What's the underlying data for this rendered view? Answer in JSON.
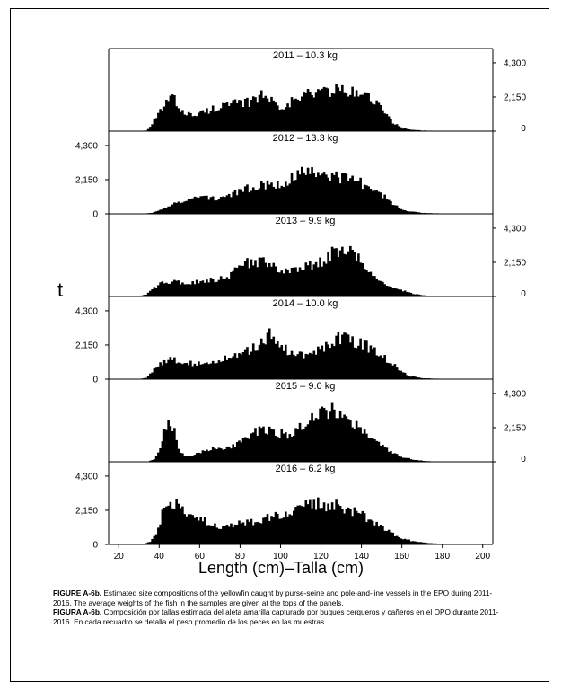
{
  "chart_data": {
    "type": "histogram-panels",
    "y_label": "t",
    "x_label": "Length (cm)–Talla (cm)",
    "x_range": [
      15,
      205
    ],
    "x_ticks": [
      20,
      40,
      60,
      80,
      100,
      120,
      140,
      160,
      180,
      200
    ],
    "y_range": [
      0,
      5200
    ],
    "y_ticks": [
      0,
      2150,
      4300
    ],
    "y_tick_labels": [
      "0",
      "2,150",
      "4,300"
    ],
    "panels": [
      {
        "title": "2011  –  10.3  kg",
        "year": "2011",
        "avg_weight": "10.3 kg",
        "axis_side": "right",
        "knots": [
          [
            30,
            0
          ],
          [
            34,
            50
          ],
          [
            36,
            300
          ],
          [
            38,
            800
          ],
          [
            40,
            1100
          ],
          [
            43,
            1700
          ],
          [
            45,
            2100
          ],
          [
            47,
            2050
          ],
          [
            49,
            1600
          ],
          [
            52,
            1250
          ],
          [
            55,
            1050
          ],
          [
            58,
            1000
          ],
          [
            61,
            1150
          ],
          [
            64,
            1300
          ],
          [
            68,
            1500
          ],
          [
            72,
            1600
          ],
          [
            76,
            1700
          ],
          [
            80,
            1700
          ],
          [
            84,
            1800
          ],
          [
            88,
            2150
          ],
          [
            92,
            2250
          ],
          [
            96,
            1900
          ],
          [
            100,
            1600
          ],
          [
            104,
            1750
          ],
          [
            108,
            2000
          ],
          [
            112,
            2300
          ],
          [
            116,
            2400
          ],
          [
            120,
            2500
          ],
          [
            124,
            2600
          ],
          [
            128,
            2550
          ],
          [
            132,
            2500
          ],
          [
            136,
            2400
          ],
          [
            140,
            2300
          ],
          [
            144,
            2200
          ],
          [
            148,
            1700
          ],
          [
            152,
            1050
          ],
          [
            156,
            500
          ],
          [
            160,
            200
          ],
          [
            164,
            100
          ],
          [
            170,
            40
          ],
          [
            180,
            15
          ],
          [
            195,
            0
          ]
        ]
      },
      {
        "title": "2012  –  13.3  kg",
        "year": "2012",
        "avg_weight": "13.3 kg",
        "axis_side": "left",
        "knots": [
          [
            30,
            0
          ],
          [
            36,
            50
          ],
          [
            40,
            200
          ],
          [
            44,
            400
          ],
          [
            48,
            650
          ],
          [
            52,
            850
          ],
          [
            56,
            950
          ],
          [
            60,
            1050
          ],
          [
            64,
            1050
          ],
          [
            68,
            1000
          ],
          [
            72,
            1050
          ],
          [
            76,
            1200
          ],
          [
            80,
            1400
          ],
          [
            84,
            1600
          ],
          [
            88,
            1750
          ],
          [
            92,
            1850
          ],
          [
            96,
            1900
          ],
          [
            100,
            1950
          ],
          [
            104,
            2150
          ],
          [
            108,
            2400
          ],
          [
            112,
            2600
          ],
          [
            116,
            2750
          ],
          [
            120,
            2700
          ],
          [
            124,
            2500
          ],
          [
            128,
            2350
          ],
          [
            132,
            2250
          ],
          [
            136,
            2100
          ],
          [
            140,
            1950
          ],
          [
            144,
            1700
          ],
          [
            148,
            1400
          ],
          [
            152,
            1000
          ],
          [
            156,
            600
          ],
          [
            160,
            300
          ],
          [
            164,
            150
          ],
          [
            170,
            60
          ],
          [
            180,
            20
          ],
          [
            195,
            0
          ]
        ]
      },
      {
        "title": "2013  –  9.9  kg",
        "year": "2013",
        "avg_weight": "9.9 kg",
        "axis_side": "right",
        "knots": [
          [
            30,
            0
          ],
          [
            34,
            150
          ],
          [
            38,
            600
          ],
          [
            42,
            900
          ],
          [
            46,
            950
          ],
          [
            50,
            850
          ],
          [
            54,
            800
          ],
          [
            58,
            900
          ],
          [
            62,
            1000
          ],
          [
            66,
            1050
          ],
          [
            70,
            1100
          ],
          [
            74,
            1250
          ],
          [
            78,
            1600
          ],
          [
            82,
            2000
          ],
          [
            86,
            2200
          ],
          [
            90,
            2200
          ],
          [
            94,
            2000
          ],
          [
            98,
            1850
          ],
          [
            102,
            1700
          ],
          [
            106,
            1600
          ],
          [
            110,
            1700
          ],
          [
            114,
            1900
          ],
          [
            118,
            2100
          ],
          [
            122,
            2400
          ],
          [
            126,
            2700
          ],
          [
            130,
            2900
          ],
          [
            134,
            2800
          ],
          [
            138,
            2400
          ],
          [
            142,
            1900
          ],
          [
            146,
            1300
          ],
          [
            150,
            900
          ],
          [
            154,
            650
          ],
          [
            158,
            450
          ],
          [
            162,
            300
          ],
          [
            166,
            150
          ],
          [
            172,
            60
          ],
          [
            180,
            20
          ],
          [
            195,
            0
          ]
        ]
      },
      {
        "title": "2014  –  10.0  kg",
        "year": "2014",
        "avg_weight": "10.0 kg",
        "axis_side": "left",
        "knots": [
          [
            30,
            0
          ],
          [
            34,
            100
          ],
          [
            38,
            700
          ],
          [
            42,
            1100
          ],
          [
            46,
            1300
          ],
          [
            50,
            1100
          ],
          [
            54,
            1000
          ],
          [
            58,
            950
          ],
          [
            62,
            1000
          ],
          [
            66,
            1150
          ],
          [
            70,
            1200
          ],
          [
            74,
            1300
          ],
          [
            78,
            1400
          ],
          [
            82,
            1650
          ],
          [
            86,
            1900
          ],
          [
            90,
            2250
          ],
          [
            94,
            2800
          ],
          [
            96,
            2850
          ],
          [
            100,
            2300
          ],
          [
            104,
            1700
          ],
          [
            108,
            1450
          ],
          [
            112,
            1500
          ],
          [
            116,
            1650
          ],
          [
            120,
            1950
          ],
          [
            124,
            2250
          ],
          [
            128,
            2600
          ],
          [
            132,
            2700
          ],
          [
            136,
            2450
          ],
          [
            140,
            2250
          ],
          [
            144,
            2000
          ],
          [
            148,
            1700
          ],
          [
            152,
            1300
          ],
          [
            156,
            900
          ],
          [
            160,
            500
          ],
          [
            164,
            200
          ],
          [
            170,
            60
          ],
          [
            180,
            20
          ],
          [
            195,
            0
          ]
        ]
      },
      {
        "title": "2015  –  9.0  kg",
        "year": "2015",
        "avg_weight": "9.0 kg",
        "axis_side": "right",
        "knots": [
          [
            34,
            0
          ],
          [
            38,
            200
          ],
          [
            41,
            900
          ],
          [
            43,
            2200
          ],
          [
            45,
            2500
          ],
          [
            47,
            2200
          ],
          [
            49,
            900
          ],
          [
            52,
            400
          ],
          [
            56,
            350
          ],
          [
            60,
            550
          ],
          [
            64,
            750
          ],
          [
            68,
            900
          ],
          [
            72,
            900
          ],
          [
            76,
            1000
          ],
          [
            80,
            1150
          ],
          [
            84,
            1450
          ],
          [
            88,
            1900
          ],
          [
            92,
            2100
          ],
          [
            96,
            2000
          ],
          [
            100,
            1750
          ],
          [
            104,
            1700
          ],
          [
            108,
            2100
          ],
          [
            112,
            2500
          ],
          [
            116,
            2750
          ],
          [
            120,
            3100
          ],
          [
            124,
            3300
          ],
          [
            126,
            3400
          ],
          [
            130,
            3000
          ],
          [
            134,
            2600
          ],
          [
            138,
            2200
          ],
          [
            142,
            1800
          ],
          [
            146,
            1350
          ],
          [
            150,
            950
          ],
          [
            154,
            650
          ],
          [
            158,
            400
          ],
          [
            162,
            250
          ],
          [
            166,
            120
          ],
          [
            172,
            40
          ],
          [
            182,
            10
          ],
          [
            195,
            0
          ]
        ]
      },
      {
        "title": "2016  –  6.2  kg",
        "year": "2016",
        "avg_weight": "6.2 kg",
        "axis_side": "left",
        "knots": [
          [
            32,
            0
          ],
          [
            36,
            200
          ],
          [
            39,
            800
          ],
          [
            41,
            1700
          ],
          [
            43,
            2300
          ],
          [
            45,
            2500
          ],
          [
            47,
            2600
          ],
          [
            49,
            2400
          ],
          [
            52,
            2000
          ],
          [
            56,
            1700
          ],
          [
            60,
            1600
          ],
          [
            64,
            1400
          ],
          [
            68,
            1200
          ],
          [
            72,
            1050
          ],
          [
            76,
            1150
          ],
          [
            80,
            1300
          ],
          [
            84,
            1350
          ],
          [
            88,
            1450
          ],
          [
            92,
            1600
          ],
          [
            96,
            1800
          ],
          [
            100,
            1900
          ],
          [
            104,
            2050
          ],
          [
            108,
            2250
          ],
          [
            112,
            2400
          ],
          [
            116,
            2500
          ],
          [
            120,
            2550
          ],
          [
            124,
            2500
          ],
          [
            128,
            2450
          ],
          [
            132,
            2300
          ],
          [
            136,
            2100
          ],
          [
            140,
            1900
          ],
          [
            144,
            1600
          ],
          [
            148,
            1300
          ],
          [
            152,
            950
          ],
          [
            156,
            650
          ],
          [
            160,
            400
          ],
          [
            164,
            250
          ],
          [
            168,
            150
          ],
          [
            174,
            80
          ],
          [
            180,
            40
          ],
          [
            190,
            10
          ],
          [
            200,
            0
          ]
        ]
      }
    ]
  },
  "caption": {
    "en_label": "FIGURE A-6b.",
    "en_text": " Estimated size compositions of the yellowfin caught by purse-seine and pole-and-line vessels in the EPO during 2011-2016. The average weights of the fish in the samples are given at the tops of the panels.",
    "es_label": "FIGURA A-6b.",
    "es_text": " Composición por tallas estimada del aleta amarilla capturado por buques cerqueros y cañeros en el OPO durante 2011-2016. En cada recuadro se detalla el peso promedio de los peces en las muestras."
  }
}
